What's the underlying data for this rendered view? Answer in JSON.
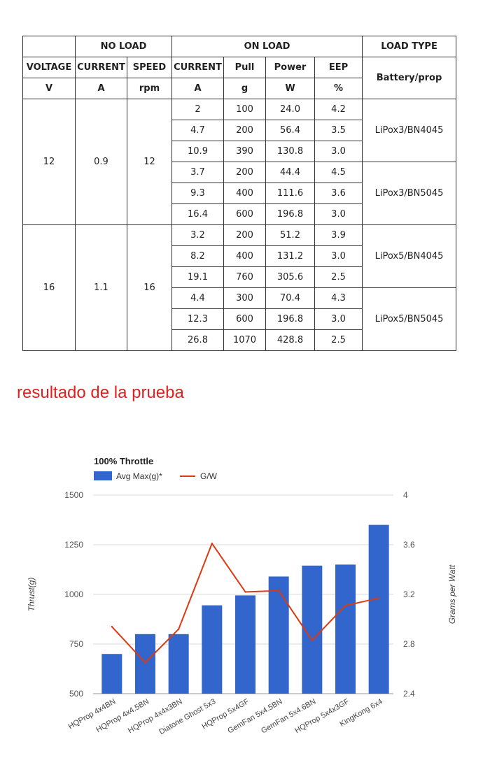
{
  "table": {
    "group_headers": {
      "no_load": "NO LOAD",
      "on_load": "ON LOAD",
      "load_type": "LOAD TYPE"
    },
    "columns": [
      "VOLTAGE",
      "CURRENT",
      "SPEED",
      "CURRENT",
      "Pull",
      "Power",
      "EEP"
    ],
    "units": [
      "V",
      "A",
      "rpm",
      "A",
      "g",
      "W",
      "%"
    ],
    "load_subheader": "Battery/prop",
    "groups": [
      {
        "voltage": "12",
        "current": "0.9",
        "speed": "12",
        "loads": [
          {
            "type": "LiPox3/BN4045",
            "rows": [
              [
                "2",
                "100",
                "24.0",
                "4.2"
              ],
              [
                "4.7",
                "200",
                "56.4",
                "3.5"
              ],
              [
                "10.9",
                "390",
                "130.8",
                "3.0"
              ]
            ]
          },
          {
            "type": "LiPox3/BN5045",
            "rows": [
              [
                "3.7",
                "200",
                "44.4",
                "4.5"
              ],
              [
                "9.3",
                "400",
                "111.6",
                "3.6"
              ],
              [
                "16.4",
                "600",
                "196.8",
                "3.0"
              ]
            ]
          }
        ]
      },
      {
        "voltage": "16",
        "current": "1.1",
        "speed": "16",
        "loads": [
          {
            "type": "LiPox5/BN4045",
            "rows": [
              [
                "3.2",
                "200",
                "51.2",
                "3.9"
              ],
              [
                "8.2",
                "400",
                "131.2",
                "3.0"
              ],
              [
                "19.1",
                "760",
                "305.6",
                "2.5"
              ]
            ]
          },
          {
            "type": "LiPox5/BN5045",
            "rows": [
              [
                "4.4",
                "300",
                "70.4",
                "4.3"
              ],
              [
                "12.3",
                "600",
                "196.8",
                "3.0"
              ],
              [
                "26.8",
                "1070",
                "428.8",
                "2.5"
              ]
            ]
          }
        ]
      }
    ]
  },
  "caption": "resultado de la prueba",
  "colors": {
    "bar": "#3366cc",
    "line": "#dc3912",
    "caption": "#e0211d"
  },
  "chart_data": {
    "type": "bar",
    "title": "100% Throttle",
    "legend_position": "top-left",
    "grid": true,
    "categories": [
      "HQProp 4x4BN",
      "HQProp 4x4.5BN",
      "HQProp 4x4x3BN",
      "Diatone Ghost 5x3",
      "HQProp 5x4GF",
      "GemFan 5x4.5BN",
      "GemFan 5x4.6BN",
      "HQProp 5x4x3GF",
      "KingKong 6x4"
    ],
    "series": [
      {
        "name": "Avg Max(g)*",
        "type": "bar",
        "axis": "left",
        "values": [
          700,
          800,
          800,
          945,
          995,
          1090,
          1145,
          1150,
          1350
        ]
      },
      {
        "name": "G/W",
        "type": "line",
        "axis": "right",
        "values": [
          2.94,
          2.65,
          2.92,
          3.61,
          3.22,
          3.23,
          2.83,
          3.11,
          3.17
        ]
      }
    ],
    "ylabel": "Thrust(g)",
    "y2label": "Grams per Watt",
    "ylim": [
      500,
      1500
    ],
    "yticks": [
      "500",
      "750",
      "1000",
      "1250",
      "1500"
    ],
    "y2lim": [
      2.4,
      4
    ],
    "y2ticks": [
      "2.4",
      "2.8",
      "3.2",
      "3.6",
      "4"
    ]
  }
}
